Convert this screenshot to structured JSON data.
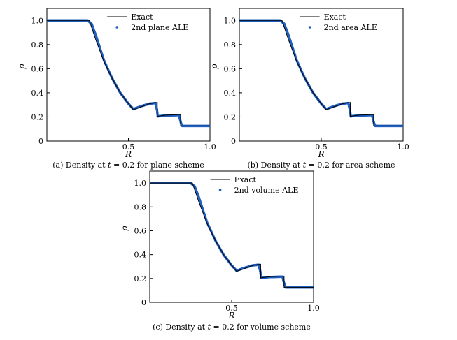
{
  "chart_data": [
    {
      "type": "line",
      "ylabel": "ρ",
      "xlabel": "R",
      "xlim": [
        0,
        1.0
      ],
      "ylim": [
        0,
        1.1
      ],
      "xticks": [
        "0.5",
        "1.0"
      ],
      "yticks": [
        "0",
        "0.2",
        "0.4",
        "0.6",
        "0.8",
        "1.0"
      ],
      "legend_position": "top-right",
      "caption": {
        "prefix": "(a) Density at ",
        "var": "t",
        "suffix": " = 0.2 for plane scheme"
      },
      "series": [
        {
          "name": "Exact",
          "style": "line",
          "color": "#000000"
        },
        {
          "name": "2nd plane ALE",
          "style": "markers",
          "color": "#1f5fbf"
        }
      ]
    },
    {
      "type": "line",
      "ylabel": "ρ",
      "xlabel": "R",
      "xlim": [
        0,
        1.0
      ],
      "ylim": [
        0,
        1.1
      ],
      "xticks": [
        "0.5",
        "1.0"
      ],
      "yticks": [
        "0",
        "0.2",
        "0.4",
        "0.6",
        "0.8",
        "1.0"
      ],
      "legend_position": "top-right",
      "caption": {
        "prefix": "(b) Density at ",
        "var": "t",
        "suffix": " = 0.2 for area scheme"
      },
      "series": [
        {
          "name": "Exact",
          "style": "line",
          "color": "#000000"
        },
        {
          "name": "2nd area ALE",
          "style": "markers",
          "color": "#1f5fbf"
        }
      ]
    },
    {
      "type": "line",
      "ylabel": "ρ",
      "xlabel": "R",
      "xlim": [
        0,
        1.0
      ],
      "ylim": [
        0,
        1.1
      ],
      "xticks": [
        "0.5",
        "1.0"
      ],
      "yticks": [
        "0",
        "0.2",
        "0.4",
        "0.6",
        "0.8",
        "1.0"
      ],
      "legend_position": "top-right",
      "caption": {
        "prefix": "(c) Density at ",
        "var": "t",
        "suffix": " = 0.2 for volume scheme"
      },
      "series": [
        {
          "name": "Exact",
          "style": "line",
          "color": "#000000"
        },
        {
          "name": "2nd volume ALE",
          "style": "markers",
          "color": "#1f5fbf"
        }
      ]
    }
  ],
  "exact_profile": {
    "x": [
      0.0,
      0.26,
      0.3,
      0.35,
      0.4,
      0.45,
      0.5,
      0.53,
      0.58,
      0.63,
      0.677,
      0.677,
      0.73,
      0.82,
      0.82,
      1.0
    ],
    "y": [
      1.0,
      1.0,
      0.84,
      0.66,
      0.52,
      0.4,
      0.31,
      0.26,
      0.285,
      0.31,
      0.32,
      0.205,
      0.215,
      0.22,
      0.125,
      0.125
    ]
  },
  "numerical_profile": {
    "x": [
      0.0,
      0.25,
      0.275,
      0.3,
      0.35,
      0.4,
      0.45,
      0.5,
      0.53,
      0.58,
      0.63,
      0.665,
      0.675,
      0.68,
      0.73,
      0.81,
      0.822,
      0.83,
      1.0
    ],
    "y": [
      1.0,
      1.0,
      0.97,
      0.88,
      0.67,
      0.52,
      0.4,
      0.31,
      0.265,
      0.29,
      0.31,
      0.315,
      0.26,
      0.205,
      0.212,
      0.215,
      0.15,
      0.125,
      0.125
    ]
  }
}
